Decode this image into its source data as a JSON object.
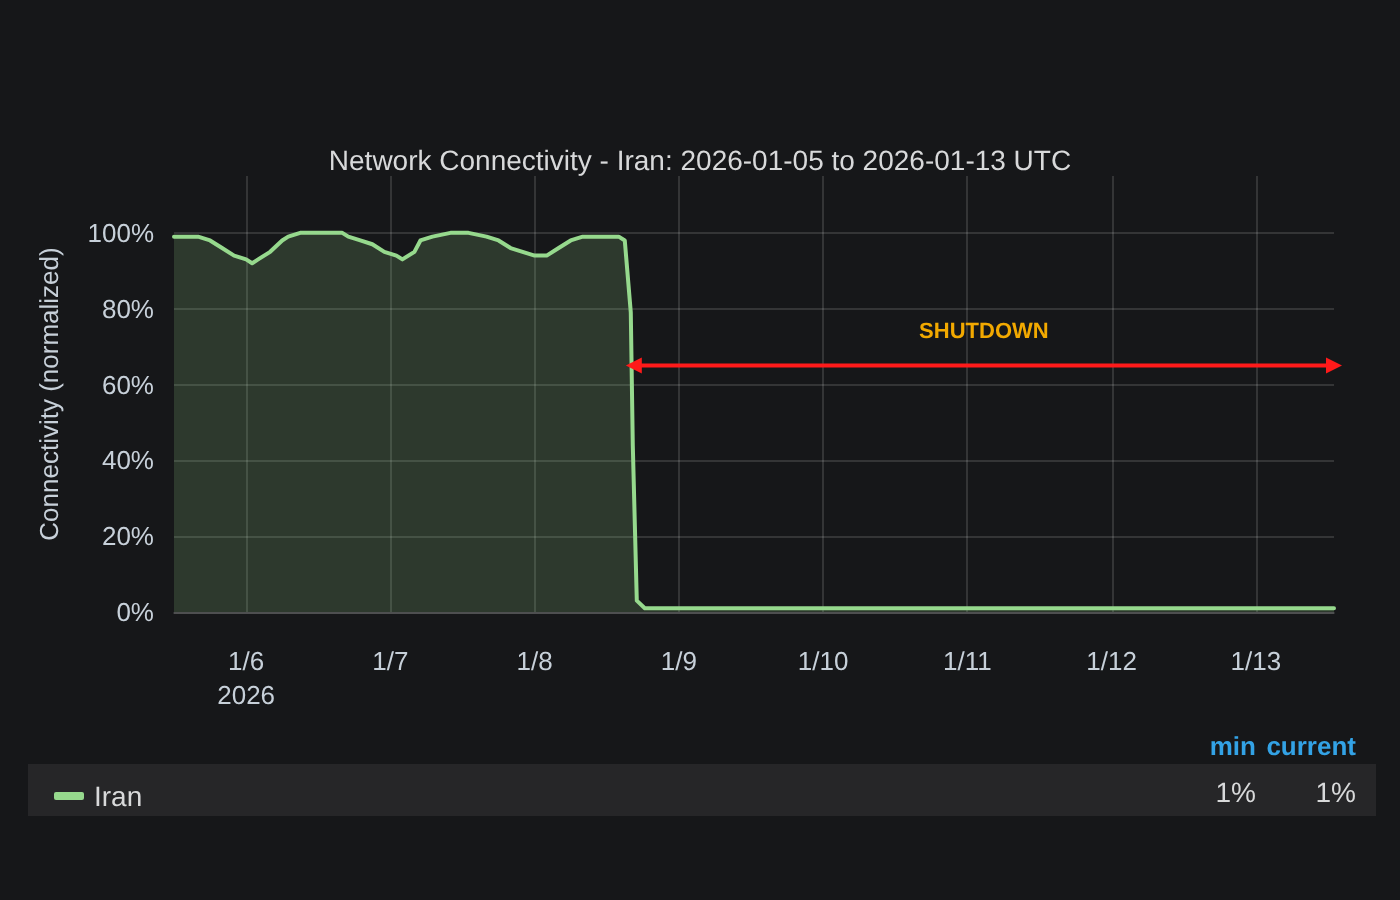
{
  "chart_data": {
    "type": "area",
    "title": "Network Connectivity - Iran: 2026-01-05 to 2026-01-13 UTC",
    "ylabel": "Connectivity (normalized)",
    "x": [
      "2026-01-05T12:00",
      "2026-01-05T15:00",
      "2026-01-05T16:00",
      "2026-01-05T18:00",
      "2026-01-05T20:00",
      "2026-01-05T22:00",
      "2026-01-06T00:00",
      "2026-01-06T01:00",
      "2026-01-06T02:00",
      "2026-01-06T04:00",
      "2026-01-06T06:00",
      "2026-01-06T07:00",
      "2026-01-06T09:00",
      "2026-01-06T12:00",
      "2026-01-06T16:00",
      "2026-01-06T17:00",
      "2026-01-06T19:00",
      "2026-01-06T21:00",
      "2026-01-06T23:00",
      "2026-01-07T01:00",
      "2026-01-07T02:00",
      "2026-01-07T04:00",
      "2026-01-07T05:00",
      "2026-01-07T07:00",
      "2026-01-07T10:00",
      "2026-01-07T13:00",
      "2026-01-07T16:00",
      "2026-01-07T18:00",
      "2026-01-07T20:00",
      "2026-01-07T22:00",
      "2026-01-08T00:00",
      "2026-01-08T02:00",
      "2026-01-08T04:00",
      "2026-01-08T06:00",
      "2026-01-08T08:00",
      "2026-01-08T11:00",
      "2026-01-08T14:00",
      "2026-01-08T15:00",
      "2026-01-08T16:00",
      "2026-01-08T16:20",
      "2026-01-08T17:00",
      "2026-01-08T18:20",
      "2026-01-09T12:00",
      "2026-01-10T12:00",
      "2026-01-11T12:00",
      "2026-01-12T12:00",
      "2026-01-13T13:00"
    ],
    "series": [
      {
        "name": "Iran",
        "color": "#96d98d",
        "values": [
          99,
          99,
          99,
          98,
          96,
          94,
          93,
          92,
          93,
          95,
          98,
          99,
          100,
          100,
          100,
          99,
          98,
          97,
          95,
          94,
          93,
          95,
          98,
          99,
          100,
          100,
          99,
          98,
          96,
          95,
          94,
          94,
          96,
          98,
          99,
          99,
          99,
          98,
          79,
          44,
          3,
          1,
          1,
          1,
          1,
          1,
          1
        ]
      },
      {
        "type": "line",
        "name": "SHUTDOWN",
        "color": "#ff1a1a",
        "marker": "triangle",
        "x": [
          "2026-01-08T16:30",
          "2026-01-13T13:00"
        ],
        "values": [
          65,
          65
        ]
      }
    ],
    "xlim": [
      "2026-01-05T12:00",
      "2026-01-13T13:00"
    ],
    "xticks": [
      {
        "value": "2026-01-06",
        "label": "1/6\n2026"
      },
      {
        "value": "2026-01-07",
        "label": "1/7"
      },
      {
        "value": "2026-01-08",
        "label": "1/8"
      },
      {
        "value": "2026-01-09",
        "label": "1/9"
      },
      {
        "value": "2026-01-10",
        "label": "1/10"
      },
      {
        "value": "2026-01-11",
        "label": "1/11"
      },
      {
        "value": "2026-01-12",
        "label": "1/12"
      },
      {
        "value": "2026-01-13",
        "label": "1/13"
      }
    ],
    "ylim": [
      0,
      115
    ],
    "yticks": [
      {
        "value": 0,
        "label": "0%"
      },
      {
        "value": 20,
        "label": "20%"
      },
      {
        "value": 40,
        "label": "40%"
      },
      {
        "value": 60,
        "label": "60%"
      },
      {
        "value": 80,
        "label": "80%"
      },
      {
        "value": 100,
        "label": "100%"
      }
    ],
    "grid": true,
    "legend": "bottom",
    "marker": "none",
    "annotations": [
      "min",
      "current",
      "1%",
      "1%"
    ]
  }
}
